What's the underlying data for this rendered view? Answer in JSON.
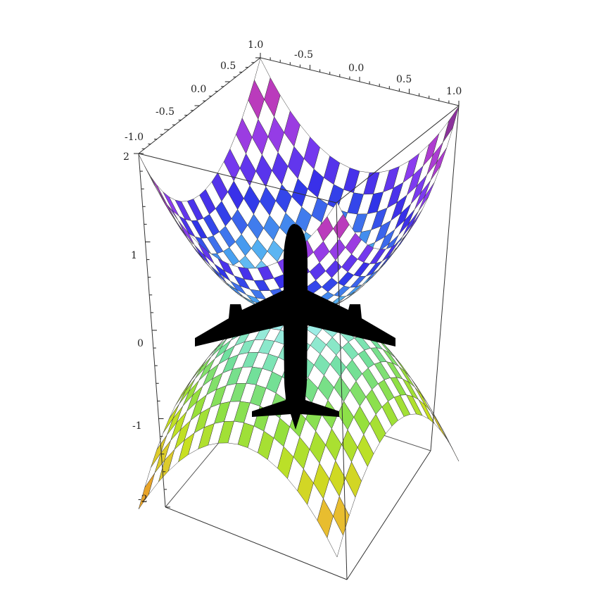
{
  "figure": {
    "description_type": "3d-surface-plot",
    "overlay_icon": "airplane-icon"
  },
  "axes": {
    "x_ticks": [
      "-0.5",
      "0.0",
      "0.5",
      "1.0"
    ],
    "y_ticks": [
      "-1.0",
      "-0.5",
      "0.0",
      "0.5",
      "1.0"
    ],
    "z_ticks": [
      "2",
      "1",
      "0",
      "-1",
      "-2"
    ],
    "z_range": [
      -2,
      2
    ],
    "xy_range": [
      -1,
      1
    ]
  },
  "colors": {
    "upper_surface": [
      "#5a2a7a",
      "#c03cc0",
      "#8a3cf0",
      "#2f2fe8",
      "#4aa8f0",
      "#a8f0f8"
    ],
    "lower_surface": [
      "#a8f0f8",
      "#70e0a0",
      "#90e040",
      "#c8e020",
      "#e8c030",
      "#e88a20"
    ],
    "checker_light": "#ffffff",
    "airplane": "#000000"
  }
}
